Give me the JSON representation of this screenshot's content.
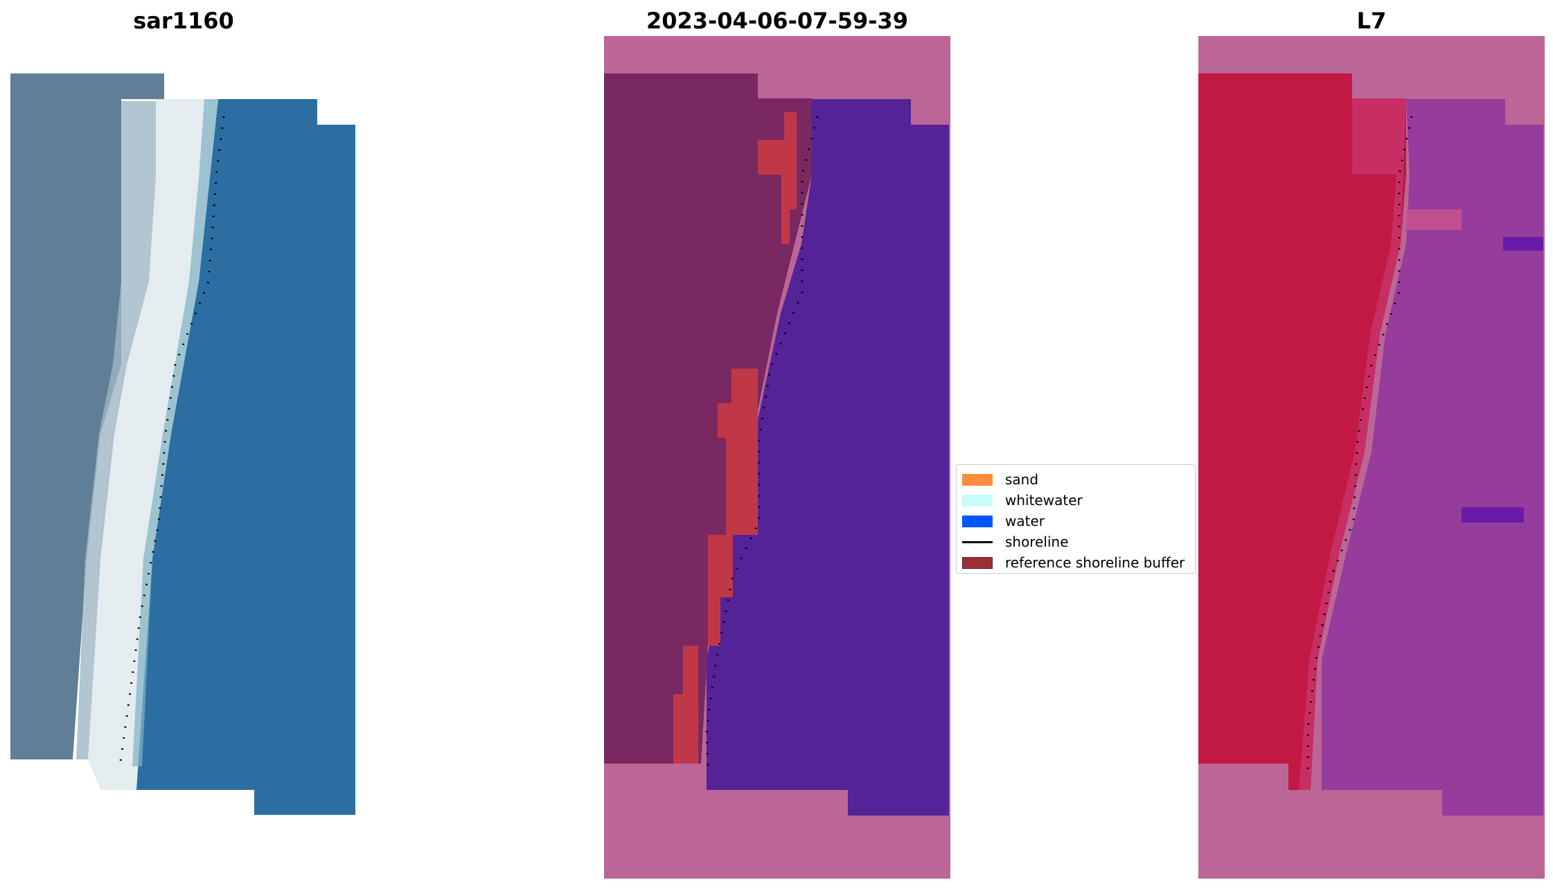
{
  "panels": [
    {
      "title": "sar1160"
    },
    {
      "title": "2023-04-06-07-59-39"
    },
    {
      "title": "L7"
    }
  ],
  "legend": {
    "items": [
      {
        "label": "sand",
        "kind": "patch",
        "color": "#ff8c3c"
      },
      {
        "label": "whitewater",
        "kind": "patch",
        "color": "#c8fcfc"
      },
      {
        "label": "water",
        "kind": "patch",
        "color": "#0055ff"
      },
      {
        "label": "shoreline",
        "kind": "line",
        "color": "#000000"
      },
      {
        "label": "reference shoreline buffer",
        "kind": "patch",
        "color": "#9c2f36"
      }
    ]
  },
  "colors": {
    "rgb_land": "#5f7e95",
    "rgb_sand_white": "#e9f0f2",
    "rgb_water": "#2b6fa3",
    "class_land": "#7a2862",
    "class_nodata": "#bb6697",
    "class_water": "#532397",
    "class_buffer": "#c03848",
    "index_land": "#c11844",
    "index_water": "#973d9c",
    "index_nodata": "#bb6697"
  }
}
